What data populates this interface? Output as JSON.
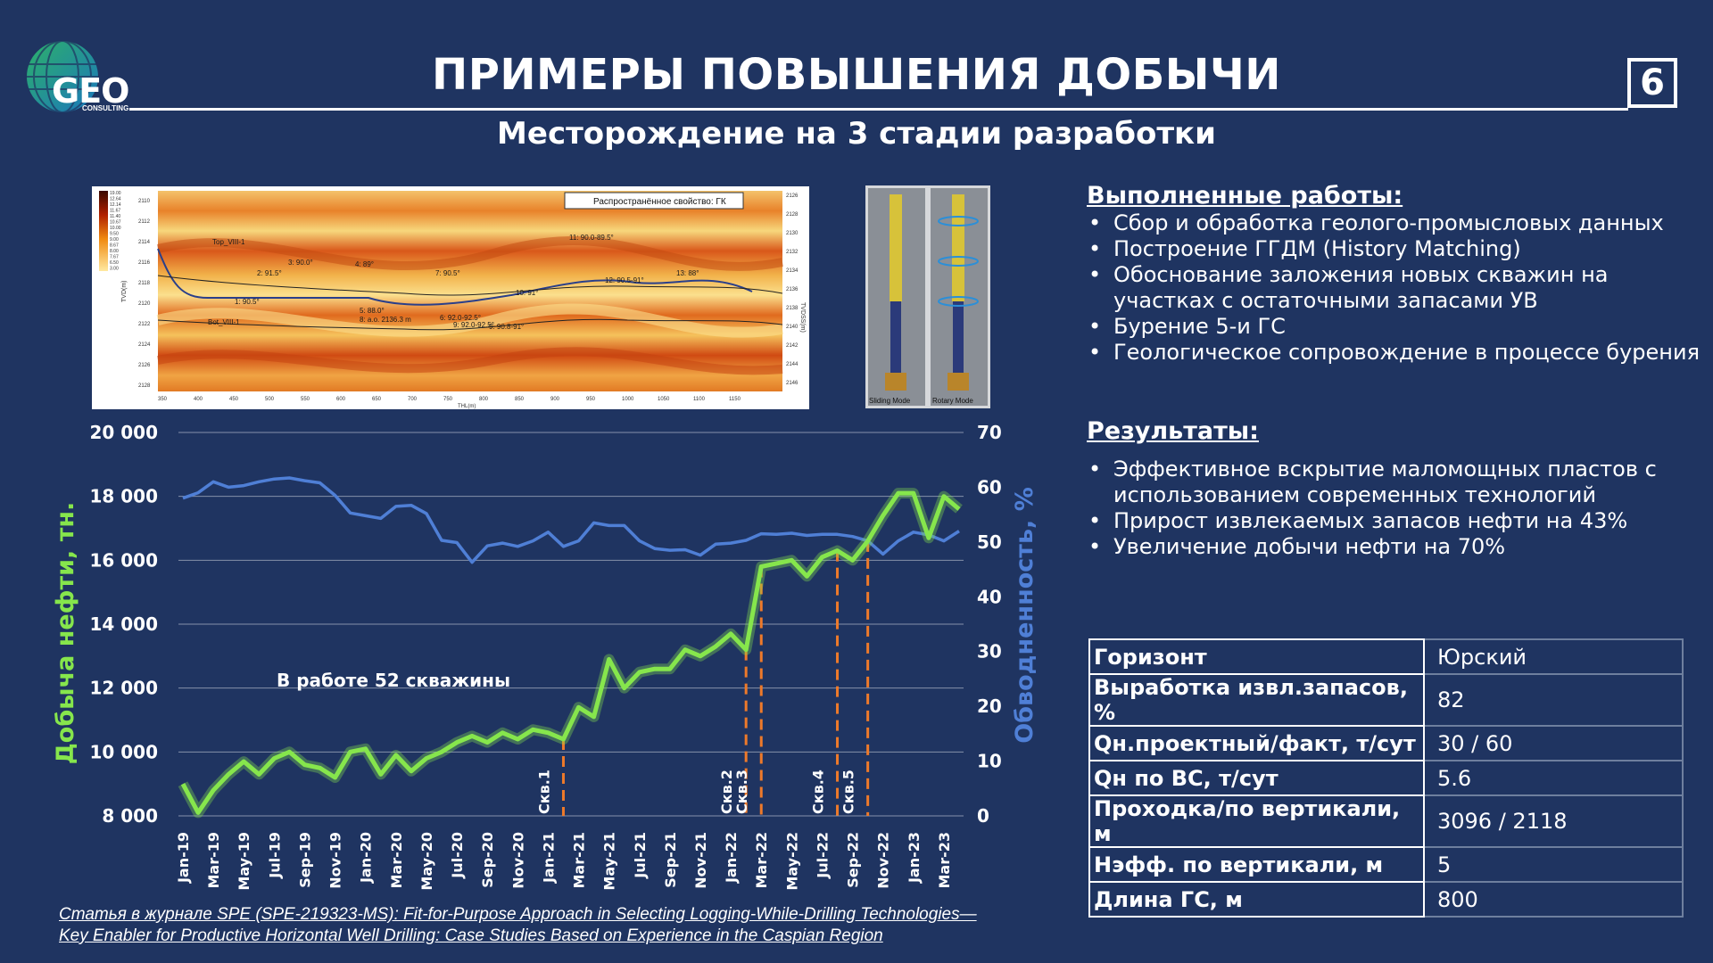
{
  "logo": {
    "text": "GEO",
    "sub": "CONSULTING"
  },
  "header": {
    "title": "ПРИМЕРЫ ПОВЫШЕНИЯ ДОБЫЧИ",
    "page_number": "6",
    "subtitle": "Месторождение на 3 стадии разработки"
  },
  "geo_section": {
    "legend_label": "Распространённое свойство: ГК",
    "left_axis_label": "TVD(m)",
    "right_axis_label": "TVDSS(m)",
    "bottom_axis_label": "THL(m)",
    "left_ticks": [
      "2110",
      "2112",
      "2114",
      "2116",
      "2118",
      "2120",
      "2122",
      "2124",
      "2126",
      "2128"
    ],
    "right_ticks": [
      "2126",
      "2128",
      "2130",
      "2132",
      "2134",
      "2136",
      "2138",
      "2140",
      "2142",
      "2144",
      "2146"
    ],
    "bottom_ticks": [
      "350",
      "400",
      "450",
      "500",
      "550",
      "600",
      "650",
      "700",
      "750",
      "800",
      "850",
      "900",
      "950",
      "1000",
      "1050",
      "1100",
      "1150"
    ],
    "colorbar_ticks": [
      "19.00",
      "12.64",
      "12.14",
      "11.67",
      "11.40",
      "10.67",
      "10.00",
      "9.50",
      "9.00",
      "8.67",
      "8.00",
      "7.67",
      "6.50",
      "3.00"
    ],
    "annotations": [
      "Top_VIII-1",
      "Bot_VIII-1",
      "2: 91.5°",
      "3: 90.0°",
      "4: 89°",
      "1: 90.5°",
      "5: 88.0°",
      "7: 90.5°",
      "6: 92.0-92.5°",
      "9: 92.0-92.5°",
      "10: 91°",
      "11: 90.0-89.5°",
      "12: 90.5-91°",
      "13: 88°",
      "8: a.o. 2136.3 m",
      "9: 90.8-91°"
    ]
  },
  "tool_image": {
    "labels": [
      "Sliding Mode",
      "Rotary Mode"
    ]
  },
  "chart_data": {
    "type": "line",
    "x": [
      "Jan-19",
      "Feb-19",
      "Mar-19",
      "Apr-19",
      "May-19",
      "Jun-19",
      "Jul-19",
      "Aug-19",
      "Sep-19",
      "Oct-19",
      "Nov-19",
      "Dec-19",
      "Jan-20",
      "Feb-20",
      "Mar-20",
      "Apr-20",
      "May-20",
      "Jun-20",
      "Jul-20",
      "Aug-20",
      "Sep-20",
      "Oct-20",
      "Nov-20",
      "Dec-20",
      "Jan-21",
      "Feb-21",
      "Mar-21",
      "Apr-21",
      "May-21",
      "Jun-21",
      "Jul-21",
      "Aug-21",
      "Sep-21",
      "Oct-21",
      "Nov-21",
      "Dec-21",
      "Jan-22",
      "Feb-22",
      "Mar-22",
      "Apr-22",
      "May-22",
      "Jun-22",
      "Jul-22",
      "Aug-22",
      "Sep-22",
      "Oct-22",
      "Nov-22",
      "Dec-22",
      "Jan-23",
      "Feb-23",
      "Mar-23",
      "Apr-23"
    ],
    "xtick_labels": [
      "Jan-19",
      "Mar-19",
      "May-19",
      "Jul-19",
      "Sep-19",
      "Nov-19",
      "Jan-20",
      "Mar-20",
      "May-20",
      "Jul-20",
      "Sep-20",
      "Nov-20",
      "Jan-21",
      "Mar-21",
      "May-21",
      "Jul-21",
      "Sep-21",
      "Nov-21",
      "Jan-22",
      "Mar-22",
      "May-22",
      "Jul-22",
      "Sep-22",
      "Nov-22",
      "Jan-23",
      "Mar-23"
    ],
    "series": [
      {
        "name": "Добыча нефти, тн.",
        "axis": "left",
        "color": "#86e64c",
        "values": [
          9000,
          8100,
          8800,
          9300,
          9700,
          9300,
          9800,
          10000,
          9600,
          9500,
          9200,
          10000,
          10100,
          9300,
          9900,
          9400,
          9800,
          10000,
          10300,
          10500,
          10300,
          10600,
          10400,
          10700,
          10600,
          10400,
          11400,
          11100,
          12900,
          12000,
          12500,
          12600,
          12600,
          13200,
          13000,
          13300,
          13700,
          13200,
          15800,
          15900,
          16000,
          15500,
          16100,
          16300,
          16000,
          16600,
          17400,
          18100,
          18100,
          16700,
          18000,
          17600
        ]
      },
      {
        "name": "Обводненность, %",
        "axis": "right",
        "color": "#4f7fd6",
        "values": [
          58,
          59,
          61,
          60,
          60.3,
          61,
          61.5,
          61.7,
          61.2,
          60.8,
          58.5,
          55.3,
          54.8,
          54.3,
          56.5,
          56.7,
          55.2,
          50.3,
          49.9,
          46.3,
          49.3,
          49.8,
          49.2,
          50.2,
          51.8,
          49.2,
          50.2,
          53.5,
          53,
          53,
          50.2,
          48.8,
          48.5,
          48.6,
          47.6,
          49.6,
          49.8,
          50.3,
          51.5,
          51.4,
          51.6,
          51.2,
          51.4,
          51.4,
          51,
          50.2,
          47.8,
          50.2,
          51.8,
          51.3,
          50.2,
          52
        ]
      }
    ],
    "markers": [
      {
        "label": "Скв.1",
        "x": "Feb-21"
      },
      {
        "label": "Скв.2",
        "x": "Feb-22"
      },
      {
        "label": "Скв.3",
        "x": "Mar-22"
      },
      {
        "label": "Скв.4",
        "x": "Aug-22"
      },
      {
        "label": "Скв.5",
        "x": "Oct-22"
      }
    ],
    "annotation": "В работе 52 скважины",
    "ylabel_left": "Добыча нефти, тн.",
    "ylabel_right": "Обводненность, %",
    "ylim_left": [
      8000,
      20000
    ],
    "ylim_right": [
      0,
      70
    ],
    "yticks_left": [
      "8 000",
      "10 000",
      "12 000",
      "14 000",
      "16 000",
      "18 000",
      "20 000"
    ],
    "yticks_right": [
      "0",
      "10",
      "20",
      "30",
      "40",
      "50",
      "60",
      "70"
    ],
    "grid": true
  },
  "works": {
    "heading": "Выполненные работы:",
    "items": [
      "Сбор и обработка геолого-промысловых данных",
      "Построение ГГДМ (History Matching)",
      "Обоснование заложения новых скважин на участках с остаточными запасами УВ",
      "Бурение 5-и ГС",
      "Геологическое сопровождение в процессе бурения"
    ]
  },
  "results": {
    "heading": "Результаты:",
    "items": [
      "Эффективное вскрытие маломощных пластов с использованием современных технологий",
      "Прирост извлекаемых запасов нефти на 43%",
      "Увеличение добычи нефти на 70%"
    ]
  },
  "params_table": [
    {
      "key": "Горизонт",
      "value": "Юрский"
    },
    {
      "key": "Выработка извл.запасов, %",
      "value": "82"
    },
    {
      "key": "Qн.проектный/факт, т/сут",
      "value": "30 / 60"
    },
    {
      "key": "Qн по ВС, т/сут",
      "value": "5.6"
    },
    {
      "key": "Проходка/по вертикали, м",
      "value": "3096 / 2118"
    },
    {
      "key": "Нэфф. по вертикали, м",
      "value": "5"
    },
    {
      "key": "Длина ГС, м",
      "value": "800"
    }
  ],
  "reference": {
    "line1": "Статья в журнале SPE (SPE-219323-MS): Fit-for-Purpose Approach in Selecting Logging-While-Drilling Technologies—",
    "line2": "Key Enabler for Productive Horizontal Well Drilling: Case Studies Based on Experience in the Caspian Region"
  }
}
